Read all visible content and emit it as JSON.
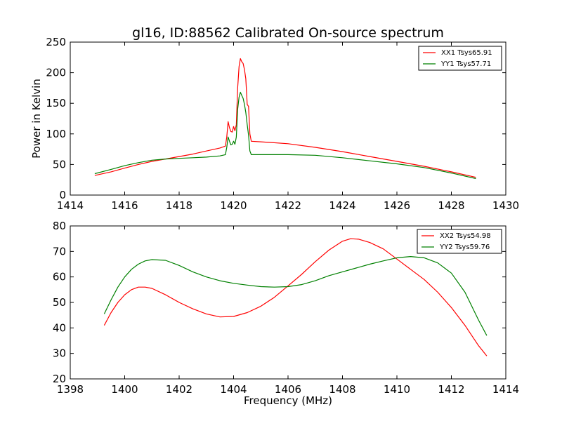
{
  "title": "gl16, ID:88562 Calibrated On-source spectrum",
  "colors": {
    "xx": "#ff0000",
    "yy": "#008000"
  },
  "chart_data": [
    {
      "type": "line",
      "xlabel": "",
      "ylabel": "Power in Kelvin",
      "xlim": [
        1414,
        1430
      ],
      "ylim": [
        0,
        250
      ],
      "xticks": [
        1414,
        1416,
        1418,
        1420,
        1422,
        1424,
        1426,
        1428,
        1430
      ],
      "yticks": [
        0,
        50,
        100,
        150,
        200,
        250
      ],
      "legend": "top-right",
      "grid": false,
      "series": [
        {
          "name": "XX1 Tsys65.91",
          "color": "#ff0000",
          "points": [
            [
              1414.9,
              32
            ],
            [
              1415.5,
              38
            ],
            [
              1416.0,
              44
            ],
            [
              1416.5,
              50
            ],
            [
              1417.0,
              55
            ],
            [
              1417.5,
              59
            ],
            [
              1418.0,
              63
            ],
            [
              1418.5,
              67
            ],
            [
              1419.0,
              72
            ],
            [
              1419.5,
              77
            ],
            [
              1419.7,
              80
            ],
            [
              1419.75,
              95
            ],
            [
              1419.8,
              120
            ],
            [
              1419.85,
              110
            ],
            [
              1419.9,
              104
            ],
            [
              1419.95,
              103
            ],
            [
              1420.0,
              112
            ],
            [
              1420.05,
              105
            ],
            [
              1420.1,
              115
            ],
            [
              1420.15,
              175
            ],
            [
              1420.2,
              210
            ],
            [
              1420.25,
              223
            ],
            [
              1420.3,
              218
            ],
            [
              1420.35,
              215
            ],
            [
              1420.4,
              205
            ],
            [
              1420.45,
              190
            ],
            [
              1420.5,
              148
            ],
            [
              1420.55,
              145
            ],
            [
              1420.6,
              100
            ],
            [
              1420.65,
              88
            ],
            [
              1421.0,
              87
            ],
            [
              1422.0,
              84
            ],
            [
              1423.0,
              78
            ],
            [
              1424.0,
              71
            ],
            [
              1425.0,
              63
            ],
            [
              1426.0,
              55
            ],
            [
              1427.0,
              47
            ],
            [
              1428.0,
              38
            ],
            [
              1428.9,
              29
            ]
          ]
        },
        {
          "name": "YY1 Tsys57.71",
          "color": "#008000",
          "points": [
            [
              1414.9,
              35
            ],
            [
              1415.5,
              42
            ],
            [
              1416.0,
              48
            ],
            [
              1416.5,
              53
            ],
            [
              1417.0,
              57
            ],
            [
              1417.5,
              59
            ],
            [
              1418.0,
              60
            ],
            [
              1418.5,
              61
            ],
            [
              1419.0,
              62
            ],
            [
              1419.5,
              64
            ],
            [
              1419.7,
              66
            ],
            [
              1419.75,
              78
            ],
            [
              1419.8,
              95
            ],
            [
              1419.85,
              88
            ],
            [
              1419.9,
              82
            ],
            [
              1419.95,
              83
            ],
            [
              1420.0,
              88
            ],
            [
              1420.05,
              83
            ],
            [
              1420.1,
              95
            ],
            [
              1420.15,
              140
            ],
            [
              1420.2,
              160
            ],
            [
              1420.25,
              168
            ],
            [
              1420.3,
              163
            ],
            [
              1420.35,
              158
            ],
            [
              1420.4,
              148
            ],
            [
              1420.45,
              135
            ],
            [
              1420.5,
              115
            ],
            [
              1420.55,
              98
            ],
            [
              1420.6,
              72
            ],
            [
              1420.65,
              66
            ],
            [
              1421.0,
              66
            ],
            [
              1422.0,
              66
            ],
            [
              1423.0,
              65
            ],
            [
              1424.0,
              61
            ],
            [
              1425.0,
              56
            ],
            [
              1426.0,
              51
            ],
            [
              1427.0,
              45
            ],
            [
              1428.0,
              36
            ],
            [
              1428.9,
              27
            ]
          ]
        }
      ]
    },
    {
      "type": "line",
      "xlabel": "Frequency (MHz)",
      "ylabel": "",
      "xlim": [
        1398,
        1414
      ],
      "ylim": [
        20,
        80
      ],
      "xticks": [
        1398,
        1400,
        1402,
        1404,
        1406,
        1408,
        1410,
        1412,
        1414
      ],
      "yticks": [
        20,
        30,
        40,
        50,
        60,
        70,
        80
      ],
      "legend": "top-right",
      "grid": false,
      "series": [
        {
          "name": "XX2 Tsys54.98",
          "color": "#ff0000",
          "points": [
            [
              1399.25,
              41
            ],
            [
              1399.5,
              46
            ],
            [
              1399.75,
              50
            ],
            [
              1400.0,
              53
            ],
            [
              1400.25,
              55
            ],
            [
              1400.5,
              56
            ],
            [
              1400.75,
              56
            ],
            [
              1401.0,
              55.5
            ],
            [
              1401.5,
              53
            ],
            [
              1402.0,
              50
            ],
            [
              1402.5,
              47.5
            ],
            [
              1403.0,
              45.5
            ],
            [
              1403.5,
              44.3
            ],
            [
              1404.0,
              44.5
            ],
            [
              1404.5,
              46
            ],
            [
              1405.0,
              48.5
            ],
            [
              1405.5,
              52
            ],
            [
              1406.0,
              56.5
            ],
            [
              1406.5,
              61
            ],
            [
              1407.0,
              66
            ],
            [
              1407.5,
              70.5
            ],
            [
              1408.0,
              74
            ],
            [
              1408.3,
              75
            ],
            [
              1408.6,
              74.8
            ],
            [
              1409.0,
              73.5
            ],
            [
              1409.5,
              71
            ],
            [
              1410.0,
              67
            ],
            [
              1410.5,
              63
            ],
            [
              1411.0,
              59
            ],
            [
              1411.5,
              54
            ],
            [
              1412.0,
              48
            ],
            [
              1412.5,
              41
            ],
            [
              1413.0,
              33
            ],
            [
              1413.3,
              29
            ]
          ]
        },
        {
          "name": "YY2 Tsys59.76",
          "color": "#008000",
          "points": [
            [
              1399.25,
              45.5
            ],
            [
              1399.5,
              51
            ],
            [
              1399.75,
              56
            ],
            [
              1400.0,
              60
            ],
            [
              1400.25,
              63
            ],
            [
              1400.5,
              65
            ],
            [
              1400.75,
              66.3
            ],
            [
              1401.0,
              66.8
            ],
            [
              1401.5,
              66.5
            ],
            [
              1402.0,
              64.5
            ],
            [
              1402.5,
              62
            ],
            [
              1403.0,
              60
            ],
            [
              1403.5,
              58.5
            ],
            [
              1404.0,
              57.5
            ],
            [
              1404.5,
              56.8
            ],
            [
              1405.0,
              56.2
            ],
            [
              1405.5,
              56
            ],
            [
              1406.0,
              56.2
            ],
            [
              1406.5,
              57
            ],
            [
              1407.0,
              58.5
            ],
            [
              1407.5,
              60.5
            ],
            [
              1408.0,
              62
            ],
            [
              1408.5,
              63.5
            ],
            [
              1409.0,
              65
            ],
            [
              1409.5,
              66.3
            ],
            [
              1410.0,
              67.5
            ],
            [
              1410.5,
              68
            ],
            [
              1411.0,
              67.5
            ],
            [
              1411.5,
              65.5
            ],
            [
              1412.0,
              61.5
            ],
            [
              1412.5,
              54
            ],
            [
              1413.0,
              43
            ],
            [
              1413.3,
              37
            ]
          ]
        }
      ]
    }
  ]
}
